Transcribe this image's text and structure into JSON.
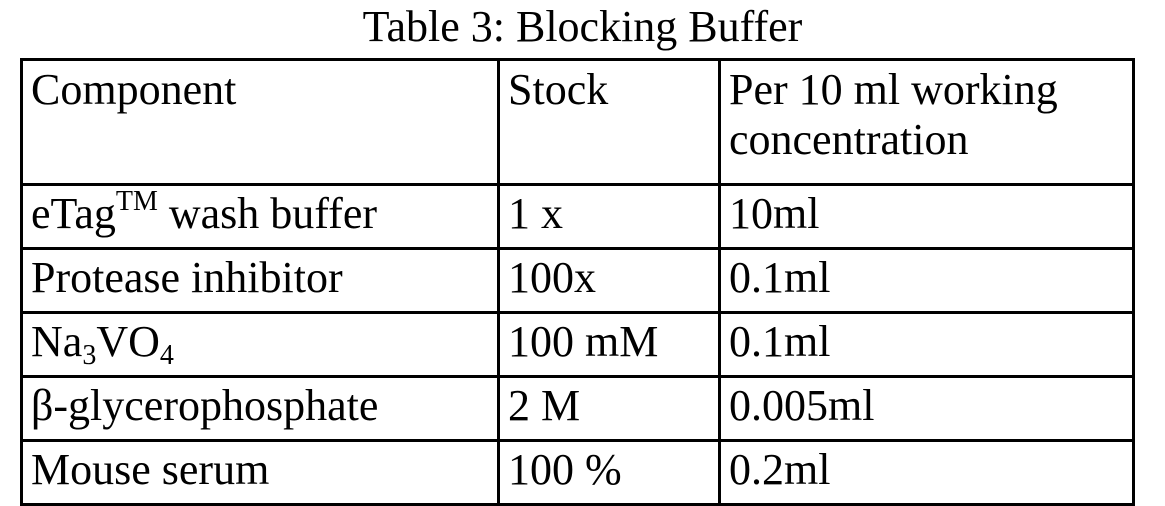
{
  "title": "Table 3: Blocking Buffer",
  "headers": [
    "Component",
    "Stock",
    "Per 10 ml working concentration"
  ],
  "rows": [
    {
      "component": {
        "pre": "eTag",
        "sup": "TM",
        "post": " wash buffer"
      },
      "stock": "1 x",
      "amount": "10ml"
    },
    {
      "component": {
        "pre": "Protease inhibitor"
      },
      "stock": "100x",
      "amount": "0.1ml"
    },
    {
      "component": {
        "pre": "Na",
        "sub1": "3",
        "mid": "VO",
        "sub2": "4"
      },
      "stock": "100 mM",
      "amount": "0.1ml"
    },
    {
      "component": {
        "pre": "β-glycerophosphate"
      },
      "stock": "2 M",
      "amount": "0.005ml"
    },
    {
      "component": {
        "pre": "Mouse serum"
      },
      "stock": "100 %",
      "amount": "0.2ml"
    }
  ]
}
